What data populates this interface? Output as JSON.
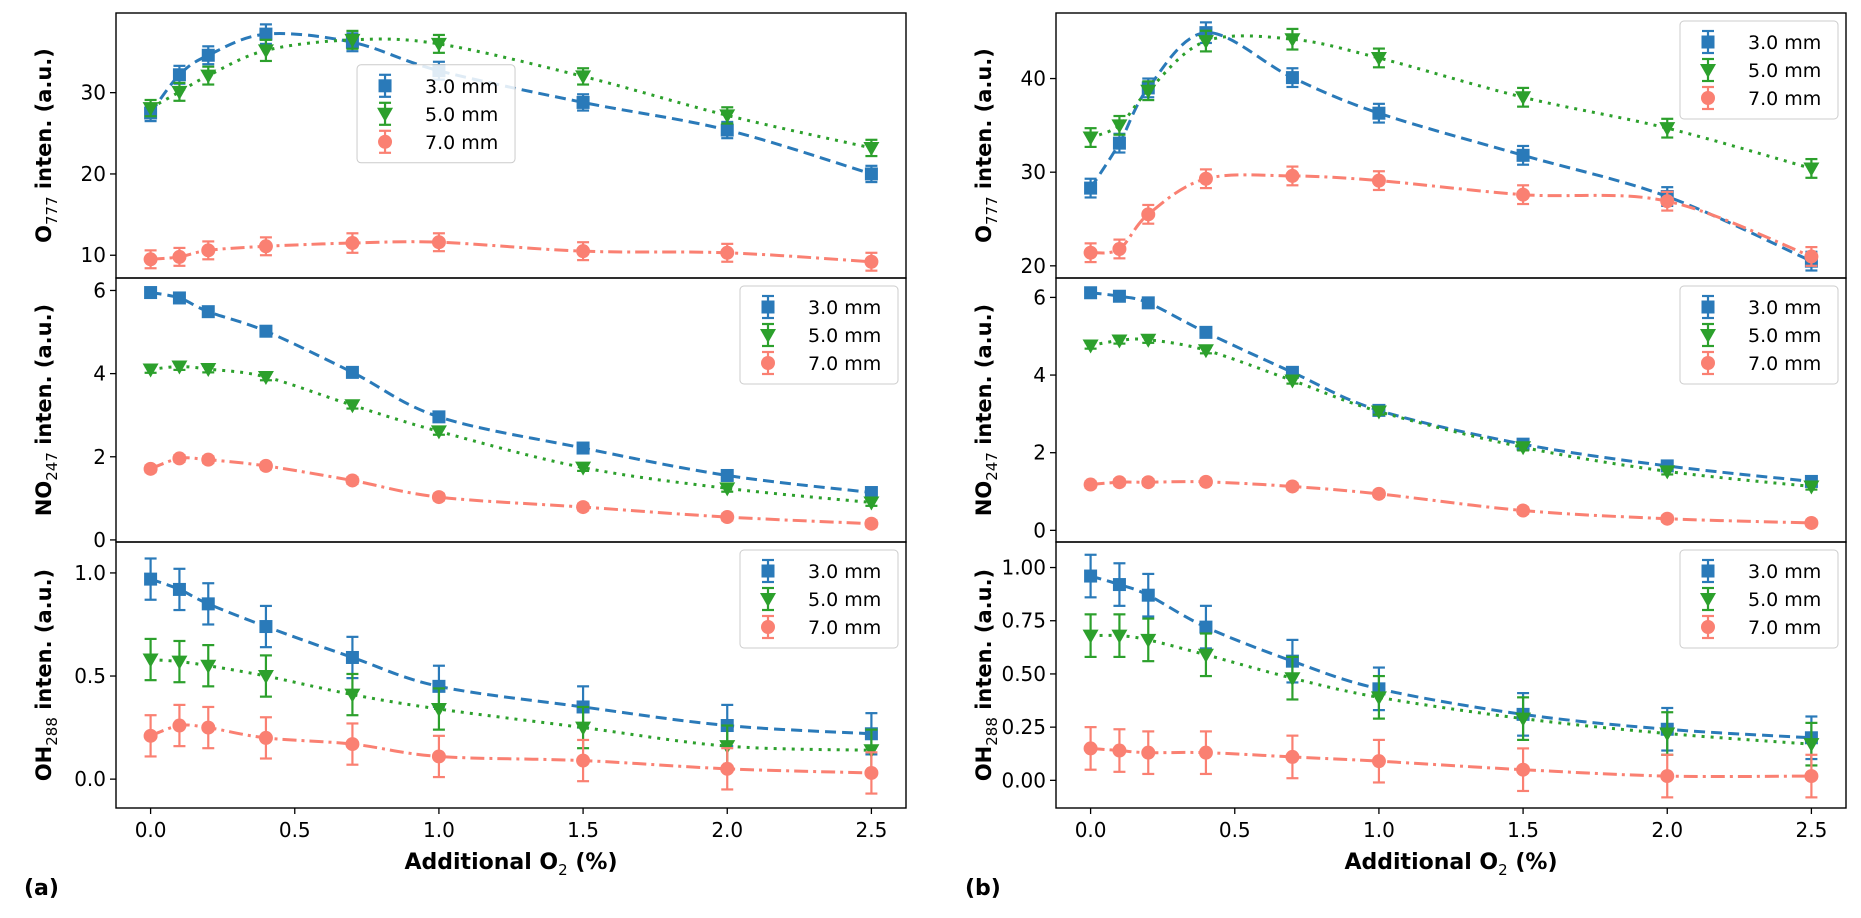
{
  "figure": {
    "panel_labels": [
      "(a)",
      "(b)"
    ],
    "xlabel_prefix": "Additional O",
    "xlabel_sub": "2",
    "xlabel_suffix": " (%)",
    "legend_labels": [
      "3.0 mm",
      "5.0 mm",
      "7.0 mm"
    ],
    "colors": {
      "s30": "#2a7ab9",
      "s50": "#2ca02c",
      "s70": "#fa8072"
    }
  },
  "chart_data": [
    {
      "id": "a-O777",
      "column": "a",
      "row": 0,
      "type": "line",
      "ylabel_main": "O",
      "ylabel_sub": "777",
      "ylabel_suffix": " inten. (a.u.)",
      "x": [
        0,
        0.1,
        0.2,
        0.4,
        0.7,
        1.0,
        1.5,
        2.0,
        2.5
      ],
      "xlim": [
        -0.12,
        2.62
      ],
      "xticks": [
        0,
        0.5,
        1.0,
        1.5,
        2.0,
        2.5
      ],
      "xtick_labels": [
        "0.0",
        "0.5",
        "1.0",
        "1.5",
        "2.0",
        "2.5"
      ],
      "ylim": [
        7.2,
        39.8
      ],
      "yticks": [
        10,
        20,
        30
      ],
      "ytick_labels": [
        "10",
        "20",
        "30"
      ],
      "legend": "center",
      "series": [
        {
          "name": "3.0 mm",
          "values": [
            27.5,
            32.2,
            34.6,
            37.2,
            36.2,
            32.7,
            28.8,
            25.4,
            20.0
          ],
          "err": [
            1.0,
            1.1,
            1.1,
            1.2,
            1.1,
            1.1,
            1.0,
            1.0,
            1.0
          ]
        },
        {
          "name": "5.0 mm",
          "values": [
            28.1,
            30.1,
            32.1,
            35.2,
            36.5,
            36.0,
            32.0,
            27.2,
            23.2
          ],
          "err": [
            1.0,
            1.1,
            1.1,
            1.3,
            1.1,
            1.1,
            1.0,
            1.0,
            1.0
          ]
        },
        {
          "name": "7.0 mm",
          "values": [
            9.5,
            9.8,
            10.6,
            11.1,
            11.5,
            11.6,
            10.5,
            10.3,
            9.2
          ],
          "err": [
            1.1,
            1.1,
            1.1,
            1.1,
            1.2,
            1.1,
            1.1,
            1.1,
            1.1
          ]
        }
      ]
    },
    {
      "id": "a-NO247",
      "column": "a",
      "row": 1,
      "type": "line",
      "ylabel_main": "NO",
      "ylabel_sub": "247",
      "ylabel_suffix": " inten. (a.u.)",
      "x": [
        0,
        0.1,
        0.2,
        0.4,
        0.7,
        1.0,
        1.5,
        2.0,
        2.5
      ],
      "xlim": [
        -0.12,
        2.62
      ],
      "xticks": [
        0,
        0.5,
        1.0,
        1.5,
        2.0,
        2.5
      ],
      "xtick_labels": [
        "0.0",
        "0.5",
        "1.0",
        "1.5",
        "2.0",
        "2.5"
      ],
      "ylim": [
        -0.05,
        6.3
      ],
      "yticks": [
        0,
        2,
        4,
        6
      ],
      "ytick_labels": [
        "0",
        "2",
        "4",
        "6"
      ],
      "legend": "top-right",
      "series": [
        {
          "name": "3.0 mm",
          "values": [
            5.95,
            5.82,
            5.49,
            5.02,
            4.03,
            2.96,
            2.21,
            1.55,
            1.14
          ],
          "err": [
            0.08,
            0.08,
            0.08,
            0.08,
            0.08,
            0.08,
            0.08,
            0.08,
            0.08
          ]
        },
        {
          "name": "5.0 mm",
          "values": [
            4.1,
            4.17,
            4.11,
            3.92,
            3.24,
            2.61,
            1.74,
            1.24,
            0.9
          ],
          "err": [
            0.08,
            0.08,
            0.08,
            0.08,
            0.08,
            0.08,
            0.08,
            0.08,
            0.08
          ]
        },
        {
          "name": "7.0 mm",
          "values": [
            1.71,
            1.96,
            1.93,
            1.78,
            1.43,
            1.03,
            0.79,
            0.55,
            0.39
          ],
          "err": [
            0.08,
            0.08,
            0.08,
            0.08,
            0.08,
            0.08,
            0.08,
            0.08,
            0.08
          ]
        }
      ]
    },
    {
      "id": "a-OH288",
      "column": "a",
      "row": 2,
      "type": "line",
      "ylabel_main": "OH",
      "ylabel_sub": "288",
      "ylabel_suffix": " inten. (a.u.)",
      "x": [
        0,
        0.1,
        0.2,
        0.4,
        0.7,
        1.0,
        1.5,
        2.0,
        2.5
      ],
      "xlim": [
        -0.12,
        2.62
      ],
      "xticks": [
        0,
        0.5,
        1.0,
        1.5,
        2.0,
        2.5
      ],
      "xtick_labels": [
        "0.0",
        "0.5",
        "1.0",
        "1.5",
        "2.0",
        "2.5"
      ],
      "ylim": [
        -0.14,
        1.15
      ],
      "yticks": [
        0.0,
        0.5,
        1.0
      ],
      "ytick_labels": [
        "0.0",
        "0.5",
        "1.0"
      ],
      "legend": "top-right",
      "series": [
        {
          "name": "3.0 mm",
          "values": [
            0.97,
            0.92,
            0.85,
            0.74,
            0.59,
            0.45,
            0.35,
            0.26,
            0.22
          ],
          "err": [
            0.1,
            0.1,
            0.1,
            0.1,
            0.1,
            0.1,
            0.1,
            0.1,
            0.1
          ]
        },
        {
          "name": "5.0 mm",
          "values": [
            0.58,
            0.57,
            0.55,
            0.5,
            0.41,
            0.34,
            0.25,
            0.16,
            0.14
          ],
          "err": [
            0.1,
            0.1,
            0.1,
            0.1,
            0.1,
            0.1,
            0.1,
            0.1,
            0.1
          ]
        },
        {
          "name": "7.0 mm",
          "values": [
            0.21,
            0.26,
            0.25,
            0.2,
            0.17,
            0.11,
            0.09,
            0.05,
            0.03
          ],
          "err": [
            0.1,
            0.1,
            0.1,
            0.1,
            0.1,
            0.1,
            0.1,
            0.1,
            0.1
          ]
        }
      ]
    },
    {
      "id": "b-O777",
      "column": "b",
      "row": 0,
      "type": "line",
      "ylabel_main": "O",
      "ylabel_sub": "777",
      "ylabel_suffix": " inten. (a.u.)",
      "x": [
        0,
        0.1,
        0.2,
        0.4,
        0.7,
        1.0,
        1.5,
        2.0,
        2.5
      ],
      "xlim": [
        -0.12,
        2.62
      ],
      "xticks": [
        0,
        0.5,
        1.0,
        1.5,
        2.0,
        2.5
      ],
      "xtick_labels": [
        "0.0",
        "0.5",
        "1.0",
        "1.5",
        "2.0",
        "2.5"
      ],
      "ylim": [
        18.7,
        47.0
      ],
      "yticks": [
        20,
        30,
        40
      ],
      "ytick_labels": [
        "20",
        "30",
        "40"
      ],
      "legend": "top-right",
      "series": [
        {
          "name": "3.0 mm",
          "values": [
            28.3,
            33.1,
            39.0,
            44.9,
            40.1,
            36.3,
            31.8,
            27.4,
            20.5
          ],
          "err": [
            1.0,
            1.0,
            1.0,
            1.1,
            1.0,
            1.0,
            1.0,
            1.0,
            1.0
          ]
        },
        {
          "name": "5.0 mm",
          "values": [
            33.7,
            35.0,
            38.7,
            44.0,
            44.2,
            42.2,
            38.0,
            34.7,
            30.4
          ],
          "err": [
            1.0,
            1.0,
            1.0,
            1.1,
            1.1,
            1.0,
            1.0,
            1.0,
            1.0
          ]
        },
        {
          "name": "7.0 mm",
          "values": [
            21.4,
            21.8,
            25.5,
            29.3,
            29.6,
            29.1,
            27.6,
            26.9,
            21.0
          ],
          "err": [
            1.0,
            1.0,
            1.0,
            1.0,
            1.0,
            1.0,
            1.0,
            1.0,
            1.0
          ]
        }
      ]
    },
    {
      "id": "b-NO247",
      "column": "b",
      "row": 1,
      "type": "line",
      "ylabel_main": "NO",
      "ylabel_sub": "247",
      "ylabel_suffix": " inten. (a.u.)",
      "x": [
        0,
        0.1,
        0.2,
        0.4,
        0.7,
        1.0,
        1.5,
        2.0,
        2.5
      ],
      "xlim": [
        -0.12,
        2.62
      ],
      "xticks": [
        0,
        0.5,
        1.0,
        1.5,
        2.0,
        2.5
      ],
      "xtick_labels": [
        "0.0",
        "0.5",
        "1.0",
        "1.5",
        "2.0",
        "2.5"
      ],
      "ylim": [
        -0.3,
        6.5
      ],
      "yticks": [
        0,
        2,
        4,
        6
      ],
      "ytick_labels": [
        "0",
        "2",
        "4",
        "6"
      ],
      "legend": "top-right",
      "series": [
        {
          "name": "3.0 mm",
          "values": [
            6.12,
            6.03,
            5.86,
            5.1,
            4.07,
            3.09,
            2.22,
            1.66,
            1.26
          ],
          "err": [
            0.08,
            0.08,
            0.08,
            0.08,
            0.08,
            0.08,
            0.08,
            0.08,
            0.08
          ]
        },
        {
          "name": "5.0 mm",
          "values": [
            4.76,
            4.89,
            4.91,
            4.64,
            3.86,
            3.06,
            2.14,
            1.52,
            1.13
          ],
          "err": [
            0.08,
            0.08,
            0.08,
            0.08,
            0.08,
            0.08,
            0.08,
            0.08,
            0.08
          ]
        },
        {
          "name": "7.0 mm",
          "values": [
            1.18,
            1.24,
            1.24,
            1.25,
            1.13,
            0.94,
            0.51,
            0.3,
            0.19
          ],
          "err": [
            0.08,
            0.08,
            0.08,
            0.08,
            0.08,
            0.08,
            0.08,
            0.08,
            0.08
          ]
        }
      ]
    },
    {
      "id": "b-OH288",
      "column": "b",
      "row": 2,
      "type": "line",
      "ylabel_main": "OH",
      "ylabel_sub": "288",
      "ylabel_suffix": " inten. (a.u.)",
      "x": [
        0,
        0.1,
        0.2,
        0.4,
        0.7,
        1.0,
        1.5,
        2.0,
        2.5
      ],
      "xlim": [
        -0.12,
        2.62
      ],
      "xticks": [
        0,
        0.5,
        1.0,
        1.5,
        2.0,
        2.5
      ],
      "xtick_labels": [
        "0.0",
        "0.5",
        "1.0",
        "1.5",
        "2.0",
        "2.5"
      ],
      "ylim": [
        -0.13,
        1.12
      ],
      "yticks": [
        0.0,
        0.25,
        0.5,
        0.75,
        1.0
      ],
      "ytick_labels": [
        "0.00",
        "0.25",
        "0.50",
        "0.75",
        "1.00"
      ],
      "legend": "top-right",
      "series": [
        {
          "name": "3.0 mm",
          "values": [
            0.96,
            0.92,
            0.87,
            0.72,
            0.56,
            0.43,
            0.31,
            0.24,
            0.2
          ],
          "err": [
            0.1,
            0.1,
            0.1,
            0.1,
            0.1,
            0.1,
            0.1,
            0.1,
            0.1
          ]
        },
        {
          "name": "5.0 mm",
          "values": [
            0.68,
            0.68,
            0.66,
            0.59,
            0.48,
            0.39,
            0.29,
            0.22,
            0.17
          ],
          "err": [
            0.1,
            0.1,
            0.1,
            0.1,
            0.1,
            0.1,
            0.1,
            0.1,
            0.1
          ]
        },
        {
          "name": "7.0 mm",
          "values": [
            0.15,
            0.14,
            0.13,
            0.13,
            0.11,
            0.09,
            0.05,
            0.02,
            0.02
          ],
          "err": [
            0.1,
            0.1,
            0.1,
            0.1,
            0.1,
            0.1,
            0.1,
            0.1,
            0.1
          ]
        }
      ]
    }
  ]
}
